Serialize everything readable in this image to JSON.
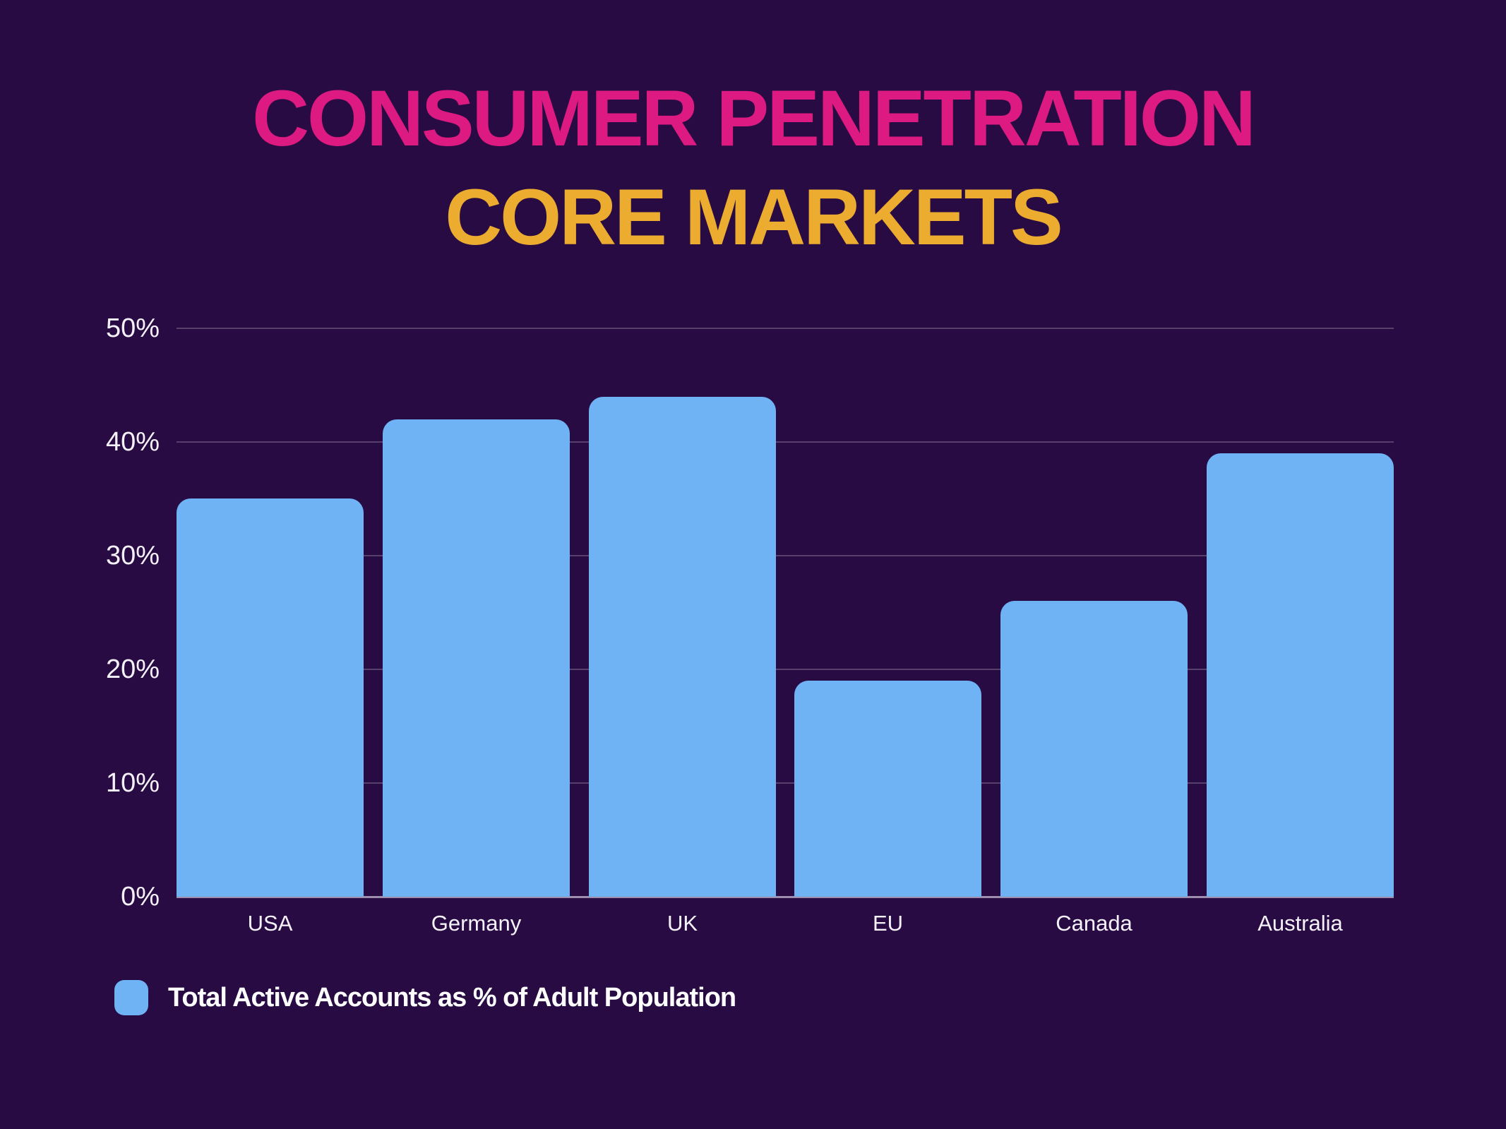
{
  "title": {
    "line1": "CONSUMER PENETRATION",
    "line2": "CORE MARKETS"
  },
  "colors": {
    "background": "#290b44",
    "title_line1": "#dd1a82",
    "title_line2": "#ecac2f",
    "bar": "#6fb3f5",
    "axis_text": "#f4f1f9",
    "gridline": "rgba(255,255,255,0.22)",
    "baseline": "rgba(236,229,243,0.60)"
  },
  "chart_data": {
    "type": "bar",
    "title": "CONSUMER PENETRATION — CORE MARKETS",
    "categories": [
      "USA",
      "Germany",
      "UK",
      "EU",
      "Canada",
      "Australia"
    ],
    "values": [
      35,
      42,
      44,
      19,
      26,
      39
    ],
    "unit": "%",
    "xlabel": "",
    "ylabel": "",
    "ylim": [
      0,
      50
    ],
    "ytick_step": 10,
    "ytick_labels": [
      "50%",
      "40%",
      "30%",
      "20%",
      "10%",
      "0%"
    ],
    "grid": "horizontal",
    "legend": {
      "position": "bottom-left",
      "label": "Total Active Accounts as % of Adult Population"
    }
  }
}
